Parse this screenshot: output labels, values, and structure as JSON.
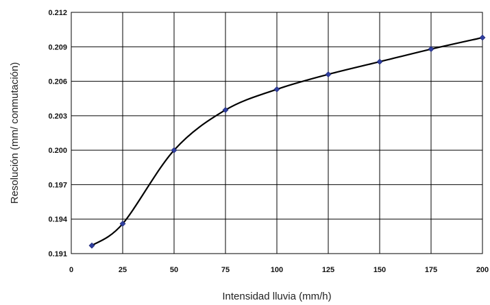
{
  "chart_data": {
    "type": "line",
    "title": "",
    "xlabel": "Intensidad lluvia (mm/h)",
    "ylabel": "Resolución (mm/ conmutación)",
    "xlim": [
      0,
      200
    ],
    "ylim": [
      0.191,
      0.212
    ],
    "x_ticks": [
      0,
      25,
      50,
      75,
      100,
      125,
      150,
      175,
      200
    ],
    "x_tick_labels": [
      "0",
      "25",
      "50",
      "75",
      "100",
      "125",
      "150",
      "175",
      "200"
    ],
    "y_ticks": [
      0.191,
      0.194,
      0.197,
      0.2,
      0.203,
      0.206,
      0.209,
      0.212
    ],
    "y_tick_labels": [
      "0.191",
      "0.194",
      "0.197",
      "0.200",
      "0.203",
      "0.206",
      "0.209",
      "0.212"
    ],
    "grid": true,
    "legend": "none",
    "series": [
      {
        "x": [
          10,
          25,
          50,
          75,
          100,
          125,
          150,
          175,
          200
        ],
        "y": [
          0.1917,
          0.1936,
          0.2,
          0.2035,
          0.2053,
          0.2066,
          0.2077,
          0.2088,
          0.2098
        ],
        "line_color": "#000000",
        "marker_color": "#2f3f9f",
        "marker": "diamond",
        "smooth": true
      }
    ]
  }
}
